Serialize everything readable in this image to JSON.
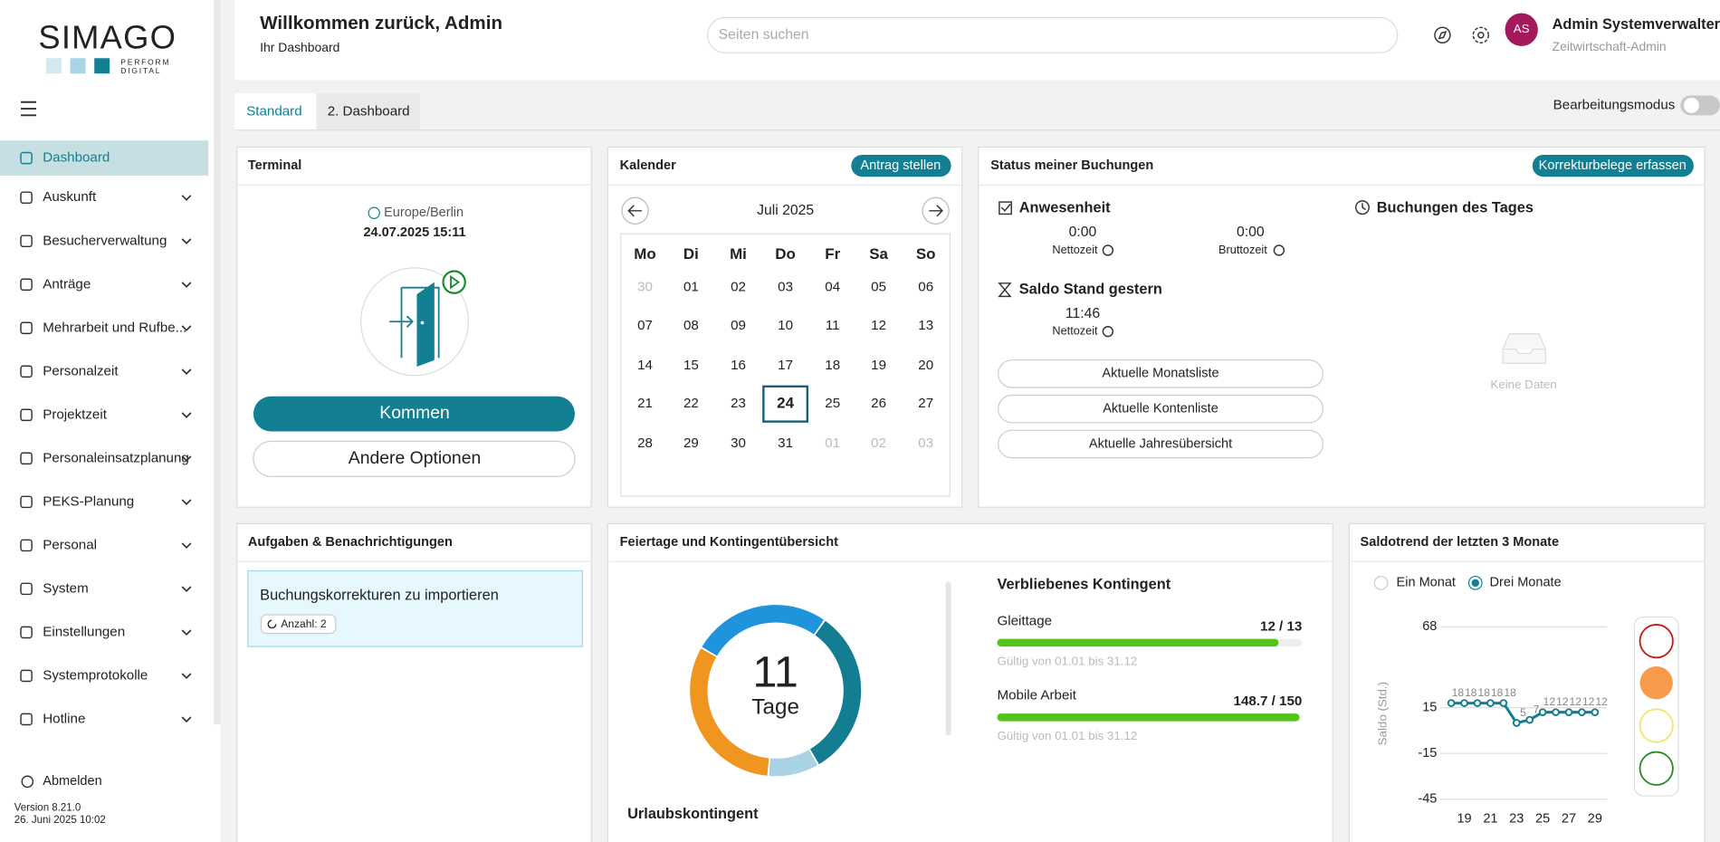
{
  "sidebar": {
    "logo": "SIMAGO",
    "logo_line_1": "PERFORM",
    "logo_line_2": "DIGITAL",
    "menu": [
      "Dashboard",
      "Auskunft",
      "Besucherverwaltung",
      "Anträge",
      "Mehrarbeit und Rufbe...",
      "Personalzeit",
      "Projektzeit",
      "Personaleinsatzplanung",
      "PEKS-Planung",
      "Personal",
      "System",
      "Einstellungen",
      "Systemprotokolle",
      "Hotline"
    ],
    "logout": "Abmelden",
    "version": "Version 8.21.0",
    "build_date": "26. Juni 2025 10:02"
  },
  "header": {
    "title": "Willkommen zurück, Admin",
    "subtitle": "Ihr Dashboard",
    "search_placeholder": "Seiten suchen",
    "avatar": "AS",
    "user_name": "Admin Systemverwalter",
    "user_role": "Zeitwirtschaft-Admin"
  },
  "tabs": [
    "Standard",
    "2. Dashboard"
  ],
  "edit_mode": "Bearbeitungsmodus",
  "terminal": {
    "title": "Terminal",
    "timezone": "Europe/Berlin",
    "datetime": "24.07.2025 15:11",
    "primary_button": "Kommen",
    "secondary_button": "Andere Optionen"
  },
  "calendar": {
    "title": "Kalender",
    "action": "Antrag stellen",
    "month": "Juli 2025",
    "weekdays": [
      "Mo",
      "Di",
      "Mi",
      "Do",
      "Fr",
      "Sa",
      "So"
    ],
    "weeks": [
      [
        "30",
        "01",
        "02",
        "03",
        "04",
        "05",
        "06"
      ],
      [
        "07",
        "08",
        "09",
        "10",
        "11",
        "12",
        "13"
      ],
      [
        "14",
        "15",
        "16",
        "17",
        "18",
        "19",
        "20"
      ],
      [
        "21",
        "22",
        "23",
        "24",
        "25",
        "26",
        "27"
      ],
      [
        "28",
        "29",
        "30",
        "31",
        "01",
        "02",
        "03"
      ]
    ]
  },
  "status": {
    "title": "Status meiner Buchungen",
    "action": "Korrekturbelege erfassen",
    "attendance": "Anwesenheit",
    "net_value": "0:00",
    "net_label": "Nettozeit",
    "gross_value": "0:00",
    "gross_label": "Bruttozeit",
    "balance_title": "Saldo Stand gestern",
    "balance_value": "11:46",
    "balance_label": "Nettozeit",
    "buttons": [
      "Aktuelle Monatsliste",
      "Aktuelle Kontenliste",
      "Aktuelle Jahresübersicht"
    ],
    "bookings_title": "Buchungen des Tages",
    "empty": "Keine Daten"
  },
  "tasks": {
    "title": "Aufgaben & Benachrichtigungen",
    "items": [
      {
        "text": "Buchungskorrekturen zu importieren",
        "badge": "Anzahl: 2"
      }
    ]
  },
  "holidays": {
    "title": "Feiertage und Kontingentübersicht",
    "section_title": "Urlaubskontingent",
    "quota_title": "Verbliebenes Kontingent",
    "quotas": [
      {
        "name": "Gleittage",
        "value": 12,
        "max": 13,
        "value_label": "12 / 13",
        "validity": "Gültig von 01.01 bis 31.12",
        "color": "#52c41a"
      },
      {
        "name": "Mobile Arbeit",
        "value": 148.7,
        "max": 150,
        "value_label": "148.7 / 150",
        "validity": "Gültig von 01.01 bis 31.12",
        "color": "#52c41a"
      }
    ]
  },
  "chart_data": [
    {
      "type": "pie",
      "donut": true,
      "start_angle": 185,
      "values": [
        115,
        95,
        115,
        35
      ],
      "colors": [
        "#f0951f",
        "#1f94dc",
        "#137d92",
        "#a9d3e5"
      ],
      "center_value": 11,
      "center_unit": "Tage"
    },
    {
      "type": "line",
      "title": "Saldotrend der letzten 3 Monate",
      "options": [
        "Ein Monat",
        "Drei Monate"
      ],
      "ylabel": "Saldo (Std.)",
      "x": [
        18,
        19,
        20,
        21,
        22,
        23,
        24,
        25,
        26,
        27,
        28,
        29
      ],
      "series": [
        {
          "name": "Saldo",
          "color": "#137d92",
          "values": [
            18,
            18,
            18,
            18,
            18,
            5,
            7,
            12,
            12,
            12,
            12,
            12
          ]
        }
      ],
      "xlim": [
        18,
        29
      ],
      "xticks": [
        19,
        21,
        23,
        25,
        27,
        29
      ],
      "ylim": [
        -45,
        68
      ],
      "yticks": [
        68,
        15,
        -15,
        -45
      ],
      "grid": true
    }
  ]
}
